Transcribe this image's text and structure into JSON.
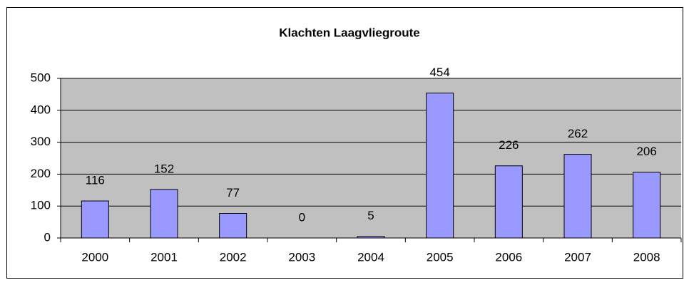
{
  "chart_data": {
    "type": "bar",
    "title": "Klachten Laagvliegroute",
    "categories": [
      "2000",
      "2001",
      "2002",
      "2003",
      "2004",
      "2005",
      "2006",
      "2007",
      "2008"
    ],
    "values": [
      116,
      152,
      77,
      0,
      5,
      454,
      226,
      262,
      206
    ],
    "color": "#9999ff",
    "ylim": [
      0,
      500
    ],
    "yticks": [
      0,
      100,
      200,
      300,
      400,
      500
    ],
    "grid": true
  }
}
